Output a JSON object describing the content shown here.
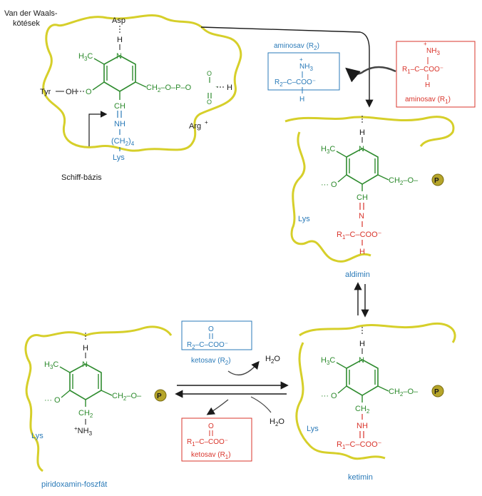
{
  "colors": {
    "enzyme_outline": "#d6cf2a",
    "plp_green": "#2e8b2e",
    "lysine_blue": "#2a7ab8",
    "substrate_red": "#d9342b",
    "text_black": "#1a1a1a",
    "phosphate_circle": "#b6a52a"
  },
  "labels": {
    "van_der_waals_line1": "Van der Waals-",
    "van_der_waals_line2": "kötések",
    "asp": "Asp",
    "tyr": "Tyr",
    "oh": "OH",
    "arg": "Arg",
    "schiff": "Schiff-bázis",
    "lys": "Lys",
    "aminosav_r2": "aminosav (R",
    "aminosav_r1": "aminosav (R",
    "ketosav_r2": "ketosav (R",
    "ketosav_r1": "ketosav (R",
    "aldimin": "aldimin",
    "ketimin": "ketimin",
    "piridoxamin": "piridoxamin-foszfát",
    "h2o": "H",
    "phosphate_p": "P",
    "coo": "COO",
    "nh3": "NH",
    "ch": "CH",
    "nh": "NH",
    "ch2": "CH",
    "n": "N",
    "h": "H",
    "c": "C",
    "o": "O",
    "r1": "R",
    "r2": "R"
  }
}
